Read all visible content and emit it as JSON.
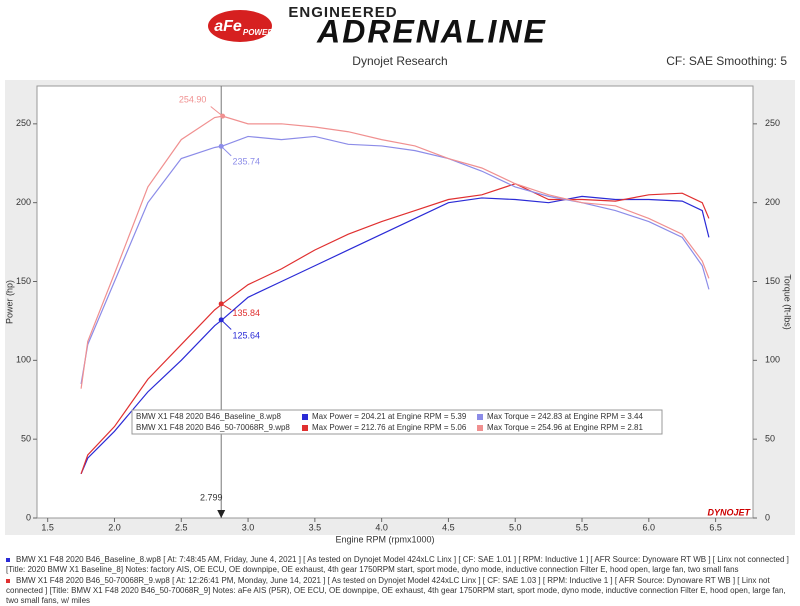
{
  "header": {
    "logo": "aFe",
    "logo_sub": "POWER",
    "tagline": "ENGINEERED",
    "brand": "ADRENALINE",
    "subtitle": "Dynojet Research",
    "settings": "CF: SAE Smoothing: 5"
  },
  "chart_data": {
    "type": "line",
    "x_label": "Engine RPM (rpmx1000)",
    "y_label": "Power (hp)",
    "y2_label": "Torque (ft-lbs)",
    "xlim": [
      1.42,
      6.78
    ],
    "ylim": [
      0,
      274
    ],
    "y2lim": [
      0,
      274
    ],
    "xticks": [
      1.5,
      {
        "value": 2,
        "label": "2.0"
      },
      2.5,
      {
        "value": 3,
        "label": "3.0"
      },
      3.5,
      {
        "value": 4,
        "label": "4.0"
      },
      4.5,
      {
        "value": 5,
        "label": "5.0"
      },
      5.5,
      {
        "value": 6,
        "label": "6.0"
      },
      6.5
    ],
    "yticks": [
      0,
      50,
      100,
      150,
      200,
      250
    ],
    "y2ticks": [
      0,
      50,
      100,
      150,
      200,
      250
    ],
    "grid": false,
    "x": [
      1.75,
      1.8,
      2.0,
      2.25,
      2.5,
      2.75,
      2.81,
      3.0,
      3.25,
      3.5,
      3.75,
      4.0,
      4.25,
      4.5,
      4.75,
      5.0,
      5.25,
      5.5,
      5.75,
      6.0,
      6.25,
      6.4,
      6.45
    ],
    "series": [
      {
        "color": "#2b2bd6",
        "values": [
          28,
          38,
          55,
          80,
          100,
          122,
          126,
          140,
          150,
          160,
          170,
          180,
          190,
          200,
          203,
          202,
          200,
          204,
          202,
          202,
          201,
          195,
          178
        ]
      },
      {
        "color": "#e03030",
        "values": [
          28,
          40,
          58,
          88,
          110,
          132,
          136,
          148,
          158,
          170,
          180,
          188,
          195,
          202,
          205,
          212,
          202,
          202,
          201,
          205,
          206,
          200,
          190
        ]
      },
      {
        "color": "#8c8ce8",
        "axis": "y2",
        "values": [
          85,
          110,
          150,
          200,
          228,
          235,
          236,
          242,
          240,
          242,
          237,
          236,
          233,
          228,
          220,
          210,
          204,
          200,
          195,
          188,
          178,
          160,
          145
        ]
      },
      {
        "color": "#f09090",
        "axis": "y2",
        "values": [
          82,
          112,
          155,
          210,
          240,
          254,
          254.9,
          250,
          250,
          248,
          245,
          240,
          236,
          228,
          222,
          212,
          205,
          200,
          198,
          190,
          180,
          163,
          152
        ]
      }
    ],
    "annotations": [
      {
        "x": 2.81,
        "y": {
          "value": 254.9,
          "label": "254.90"
        },
        "color": "#f09090"
      },
      {
        "x": 2.799,
        "y": 235.74,
        "color": "#8c8ce8"
      },
      {
        "x": 2.799,
        "y": 135.84,
        "color": "#e03030"
      },
      {
        "x": 2.799,
        "y": 125.64,
        "color": "#2b2bd6"
      }
    ],
    "cursor": 2.799,
    "legend_table": [
      {
        "file": "BMW X1 F48 2020 B46_Baseline_8.wp8",
        "power": "Max Power = 204.21 at Engine RPM = 5.39",
        "torque": "Max Torque = 242.83 at Engine RPM = 3.44",
        "power_color": "#2b2bd6",
        "torque_color": "#8c8ce8"
      },
      {
        "file": "BMW X1 F48 2020 B46_50-70068R_9.wp8",
        "power": "Max Power = 212.76 at Engine RPM = 5.06",
        "torque": "Max Torque = 254.96 at Engine RPM = 2.81",
        "power_color": "#e03030",
        "torque_color": "#f09090"
      }
    ],
    "watermark": "DYNOJET"
  },
  "footer": {
    "notes": [
      "BMW X1 F48 2020 B46_Baseline_8.wp8 [ At: 7:48:45 AM, Friday, June 4, 2021 ] [ As tested on Dynojet Model 424xLC Linx ] [ CF: SAE 1.01 ] [ RPM: Inductive 1 ] [ AFR Source: Dynoware RT WB ] [ Linx not connected ] [Title: 2020 BMW X1 Baseline_8]  Notes: factory AIS, OE ECU, OE downpipe, OE exhaust, 4th gear 1750RPM start, sport mode, dyno mode, inductive connection Filter E, hood open, large fan, two small fans",
      "BMW X1 F48 2020 B46_50-70068R_9.wp8 [ At: 12:26:41 PM, Monday, June 14, 2021 ] [ As tested on Dynojet Model 424xLC Linx ] [ CF: SAE 1.03 ] [ RPM: Inductive 1 ] [ AFR Source: Dynoware RT WB ] [ Linx not connected ] [Title: BMW X1 F48 2020 B46_50-70068R_9]  Notes: aFe AIS (P5R), OE ECU, OE downpipe, OE exhaust, 4th gear 1750RPM start, sport mode, dyno mode, inductive connection Filter E, hood open, large fan, two small fans, w/ miles"
    ]
  }
}
